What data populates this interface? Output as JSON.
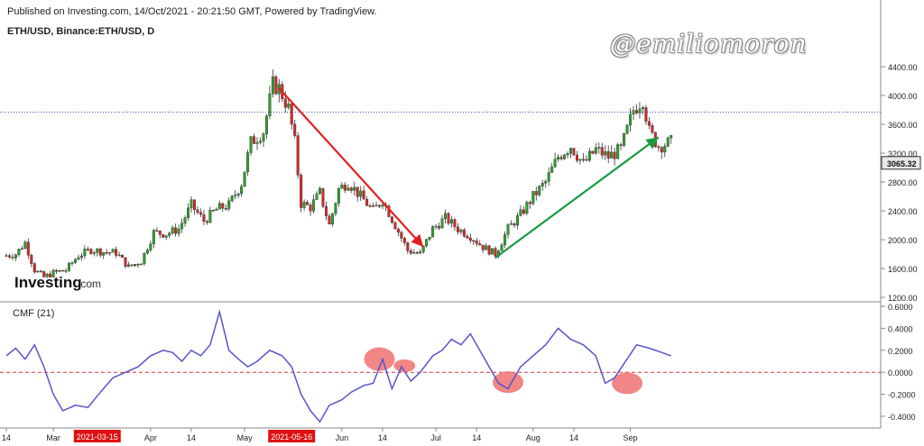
{
  "header": {
    "published": "Published on Investing.com, 14/Oct/2021 - 20:21:50 GMT, Powered by TradingView.",
    "symbol": "ETH/USD, Binance:ETH/USD, D"
  },
  "watermark": "@emiliomoron",
  "logo": {
    "brand": "Investing",
    "suffix": ".com"
  },
  "colors": {
    "up": "#2ca02c",
    "down": "#d62728",
    "cmf_line": "#5555cc",
    "zero_line": "#e03030",
    "last_price_line": "#3050c0",
    "highlight": "#f07070",
    "arrow_down": "#e02020",
    "arrow_up": "#1a9a40"
  },
  "chart_data": [
    {
      "type": "candlestick",
      "title": "ETH/USD, Binance:ETH/USD, D",
      "ylim": [
        1200,
        4500
      ],
      "y_ticks": [
        "4400.00",
        "4000.00",
        "3600.00",
        "3200.00",
        "2800.00",
        "2400.00",
        "2000.00",
        "1600.00",
        "1200.00"
      ],
      "last_price": 3065.32,
      "last_price_label": "3065.32",
      "dotted_line_level": 3770,
      "x_start": "2021-02-14",
      "x_end": "2021-10-14",
      "closes": [
        [
          "2021-02-14",
          1780
        ],
        [
          "2021-02-17",
          1800
        ],
        [
          "2021-02-20",
          1960
        ],
        [
          "2021-02-23",
          1580
        ],
        [
          "2021-02-26",
          1480
        ],
        [
          "2021-03-01",
          1540
        ],
        [
          "2021-03-05",
          1580
        ],
        [
          "2021-03-09",
          1780
        ],
        [
          "2021-03-13",
          1860
        ],
        [
          "2021-03-17",
          1830
        ],
        [
          "2021-03-21",
          1820
        ],
        [
          "2021-03-25",
          1620
        ],
        [
          "2021-03-29",
          1700
        ],
        [
          "2021-04-02",
          2100
        ],
        [
          "2021-04-06",
          2080
        ],
        [
          "2021-04-10",
          2150
        ],
        [
          "2021-04-14",
          2480
        ],
        [
          "2021-04-18",
          2260
        ],
        [
          "2021-04-22",
          2420
        ],
        [
          "2021-04-26",
          2480
        ],
        [
          "2021-04-30",
          2780
        ],
        [
          "2021-05-03",
          3350
        ],
        [
          "2021-05-07",
          3500
        ],
        [
          "2021-05-10",
          4150
        ],
        [
          "2021-05-12",
          4100
        ],
        [
          "2021-05-15",
          3820
        ],
        [
          "2021-05-17",
          3350
        ],
        [
          "2021-05-19",
          2500
        ],
        [
          "2021-05-22",
          2450
        ],
        [
          "2021-05-25",
          2650
        ],
        [
          "2021-05-28",
          2200
        ],
        [
          "2021-05-31",
          2700
        ],
        [
          "2021-06-03",
          2800
        ],
        [
          "2021-06-07",
          2600
        ],
        [
          "2021-06-11",
          2400
        ],
        [
          "2021-06-14",
          2550
        ],
        [
          "2021-06-18",
          2200
        ],
        [
          "2021-06-22",
          1850
        ],
        [
          "2021-06-26",
          1800
        ],
        [
          "2021-06-30",
          2150
        ],
        [
          "2021-07-04",
          2300
        ],
        [
          "2021-07-08",
          2150
        ],
        [
          "2021-07-12",
          2050
        ],
        [
          "2021-07-16",
          1900
        ],
        [
          "2021-07-20",
          1800
        ],
        [
          "2021-07-24",
          2150
        ],
        [
          "2021-07-28",
          2350
        ],
        [
          "2021-08-01",
          2600
        ],
        [
          "2021-08-05",
          2800
        ],
        [
          "2021-08-09",
          3150
        ],
        [
          "2021-08-13",
          3300
        ],
        [
          "2021-08-17",
          3050
        ],
        [
          "2021-08-21",
          3250
        ],
        [
          "2021-08-25",
          3150
        ],
        [
          "2021-08-29",
          3250
        ],
        [
          "2021-09-02",
          3800
        ],
        [
          "2021-09-05",
          3950
        ],
        [
          "2021-09-07",
          3500
        ],
        [
          "2021-09-10",
          3300
        ],
        [
          "2021-09-14",
          3350
        ]
      ],
      "annotations": [
        {
          "kind": "arrow",
          "label": "",
          "from": [
            "2021-05-12",
            4100
          ],
          "to": [
            "2021-06-27",
            1900
          ],
          "color": "#e02020"
        },
        {
          "kind": "arrow",
          "label": "",
          "from": [
            "2021-07-20",
            1750
          ],
          "to": [
            "2021-09-10",
            3420
          ],
          "color": "#1a9a40"
        }
      ]
    },
    {
      "type": "line",
      "title": "CMF (21)",
      "ylim": [
        -0.48,
        0.62
      ],
      "y_ticks": [
        "0.6000",
        "0.4000",
        "0.2000",
        "0.0000",
        "-0.2000",
        "-0.4000"
      ],
      "zero_line": 0,
      "x_ticks": [
        {
          "date": "2021-02-14",
          "label": "14"
        },
        {
          "date": "2021-03-01",
          "label": "Mar"
        },
        {
          "date": "2021-03-15",
          "label": "2021-03-15",
          "highlight": true
        },
        {
          "date": "2021-04-01",
          "label": "Apr"
        },
        {
          "date": "2021-04-14",
          "label": "14"
        },
        {
          "date": "2021-05-01",
          "label": "May"
        },
        {
          "date": "2021-05-16",
          "label": "2021-05-16",
          "highlight": true
        },
        {
          "date": "2021-06-01",
          "label": "Jun"
        },
        {
          "date": "2021-06-14",
          "label": "14"
        },
        {
          "date": "2021-07-01",
          "label": "Jul"
        },
        {
          "date": "2021-07-14",
          "label": "14"
        },
        {
          "date": "2021-08-01",
          "label": "Aug"
        },
        {
          "date": "2021-08-14",
          "label": "14"
        },
        {
          "date": "2021-09-01",
          "label": "Sep"
        }
      ],
      "series": [
        {
          "values": [
            [
              "2021-02-14",
              0.15
            ],
            [
              "2021-02-17",
              0.22
            ],
            [
              "2021-02-20",
              0.12
            ],
            [
              "2021-02-23",
              0.25
            ],
            [
              "2021-02-26",
              0.05
            ],
            [
              "2021-03-01",
              -0.2
            ],
            [
              "2021-03-04",
              -0.35
            ],
            [
              "2021-03-08",
              -0.3
            ],
            [
              "2021-03-12",
              -0.32
            ],
            [
              "2021-03-16",
              -0.18
            ],
            [
              "2021-03-20",
              -0.05
            ],
            [
              "2021-03-24",
              0.0
            ],
            [
              "2021-03-28",
              0.05
            ],
            [
              "2021-04-01",
              0.15
            ],
            [
              "2021-04-05",
              0.2
            ],
            [
              "2021-04-08",
              0.18
            ],
            [
              "2021-04-11",
              0.1
            ],
            [
              "2021-04-14",
              0.2
            ],
            [
              "2021-04-17",
              0.15
            ],
            [
              "2021-04-20",
              0.25
            ],
            [
              "2021-04-23",
              0.55
            ],
            [
              "2021-04-26",
              0.2
            ],
            [
              "2021-04-29",
              0.12
            ],
            [
              "2021-05-02",
              0.05
            ],
            [
              "2021-05-05",
              0.1
            ],
            [
              "2021-05-09",
              0.2
            ],
            [
              "2021-05-13",
              0.15
            ],
            [
              "2021-05-16",
              0.05
            ],
            [
              "2021-05-19",
              -0.2
            ],
            [
              "2021-05-22",
              -0.35
            ],
            [
              "2021-05-25",
              -0.45
            ],
            [
              "2021-05-28",
              -0.3
            ],
            [
              "2021-06-01",
              -0.25
            ],
            [
              "2021-06-04",
              -0.18
            ],
            [
              "2021-06-08",
              -0.12
            ],
            [
              "2021-06-11",
              -0.1
            ],
            [
              "2021-06-14",
              0.12
            ],
            [
              "2021-06-17",
              -0.15
            ],
            [
              "2021-06-20",
              0.05
            ],
            [
              "2021-06-23",
              -0.08
            ],
            [
              "2021-06-26",
              0.0
            ],
            [
              "2021-06-30",
              0.15
            ],
            [
              "2021-07-03",
              0.2
            ],
            [
              "2021-07-06",
              0.3
            ],
            [
              "2021-07-09",
              0.25
            ],
            [
              "2021-07-12",
              0.35
            ],
            [
              "2021-07-15",
              0.2
            ],
            [
              "2021-07-18",
              0.05
            ],
            [
              "2021-07-21",
              -0.1
            ],
            [
              "2021-07-24",
              -0.15
            ],
            [
              "2021-07-28",
              0.05
            ],
            [
              "2021-08-01",
              0.15
            ],
            [
              "2021-08-05",
              0.25
            ],
            [
              "2021-08-09",
              0.4
            ],
            [
              "2021-08-13",
              0.3
            ],
            [
              "2021-08-17",
              0.25
            ],
            [
              "2021-08-21",
              0.15
            ],
            [
              "2021-08-24",
              -0.1
            ],
            [
              "2021-08-27",
              -0.05
            ],
            [
              "2021-08-30",
              0.08
            ],
            [
              "2021-09-03",
              0.25
            ],
            [
              "2021-09-07",
              0.22
            ],
            [
              "2021-09-11",
              0.18
            ],
            [
              "2021-09-14",
              0.15
            ]
          ]
        }
      ],
      "highlights": [
        {
          "date": "2021-06-13",
          "value": 0.12
        },
        {
          "date": "2021-06-21",
          "value": 0.06
        },
        {
          "date": "2021-07-24",
          "value": -0.09
        },
        {
          "date": "2021-08-31",
          "value": -0.1
        }
      ]
    }
  ]
}
